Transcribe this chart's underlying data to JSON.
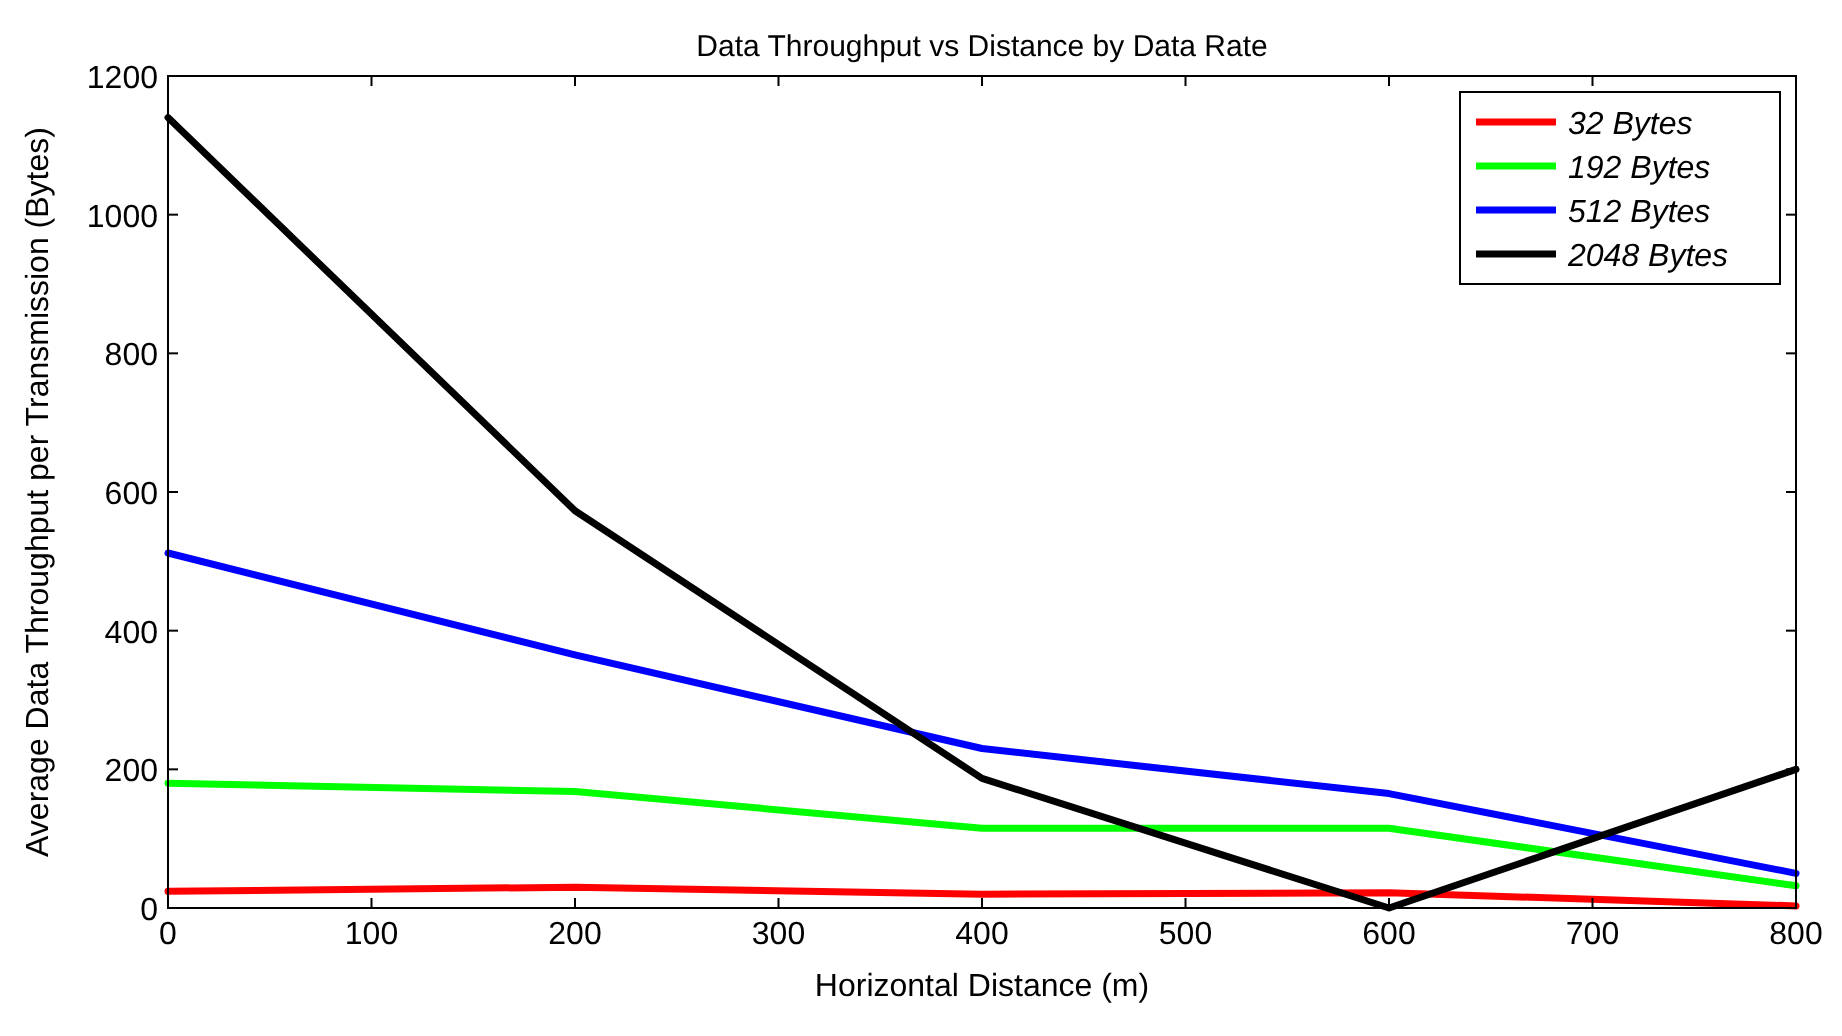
{
  "chart_data": {
    "type": "line",
    "title": "Data Throughput vs Distance by Data Rate",
    "xlabel": "Horizontal Distance (m)",
    "ylabel": "Average Data Throughput per Transmission (Bytes)",
    "x": [
      0,
      200,
      400,
      600,
      800
    ],
    "series": [
      {
        "name": "32 Bytes",
        "color": "#ff0000",
        "values": [
          24,
          30,
          20,
          22,
          3
        ]
      },
      {
        "name": "192 Bytes",
        "color": "#00ff00",
        "values": [
          180,
          168,
          115,
          115,
          32
        ]
      },
      {
        "name": "512 Bytes",
        "color": "#0000ff",
        "values": [
          512,
          365,
          230,
          165,
          50
        ]
      },
      {
        "name": "2048 Bytes",
        "color": "#000000",
        "values": [
          1140,
          573,
          187,
          0,
          200
        ]
      }
    ],
    "xlim": [
      0,
      800
    ],
    "xticks": [
      0,
      100,
      200,
      300,
      400,
      500,
      600,
      700,
      800
    ],
    "ylim": [
      0,
      1200
    ],
    "yticks": [
      0,
      200,
      400,
      600,
      800,
      1000,
      1200
    ],
    "grid": false,
    "legend": "top right",
    "marker": "none",
    "line_style": "solid"
  }
}
